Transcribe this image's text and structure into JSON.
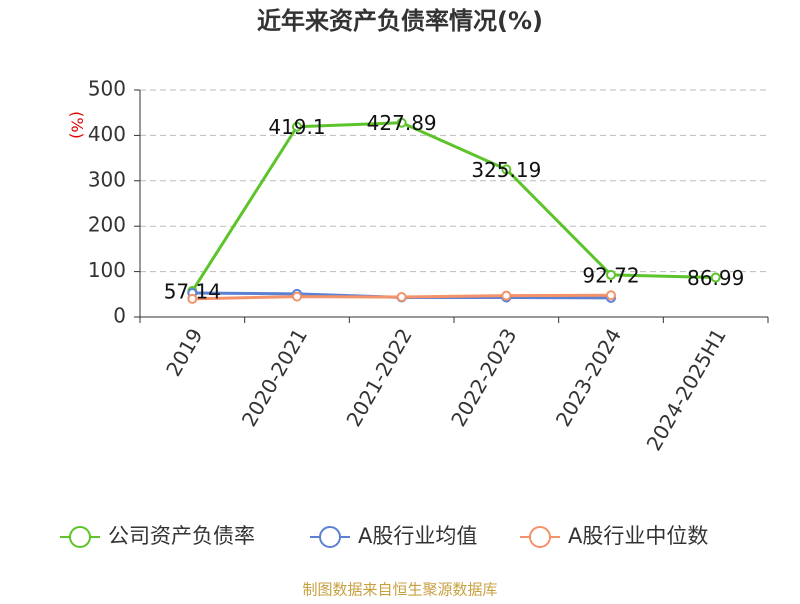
{
  "chart_data": {
    "type": "line",
    "title": "近年来资产负债率情况(%)",
    "y_label": "(%)",
    "categories": [
      "2019",
      "2020-2021",
      "2021-2022",
      "2022-2023",
      "2023-2024",
      "2024-2025H1"
    ],
    "series": [
      {
        "name": "公司资产负债率",
        "color": "#5cc42a",
        "values": [
          57.14,
          419.1,
          427.89,
          325.19,
          92.72,
          86.99
        ],
        "show_labels": true
      },
      {
        "name": "A股行业均值",
        "color": "#5b80d4",
        "values": [
          53,
          51,
          43,
          43,
          42,
          null
        ],
        "show_labels": false
      },
      {
        "name": "A股行业中位数",
        "color": "#f4936a",
        "values": [
          40,
          45,
          44,
          47,
          48,
          null
        ],
        "show_labels": false
      }
    ],
    "ylim": [
      0,
      500
    ],
    "yticks": [
      0,
      100,
      200,
      300,
      400,
      500
    ],
    "grid": true,
    "source": "制图数据来自恒生聚源数据库"
  }
}
